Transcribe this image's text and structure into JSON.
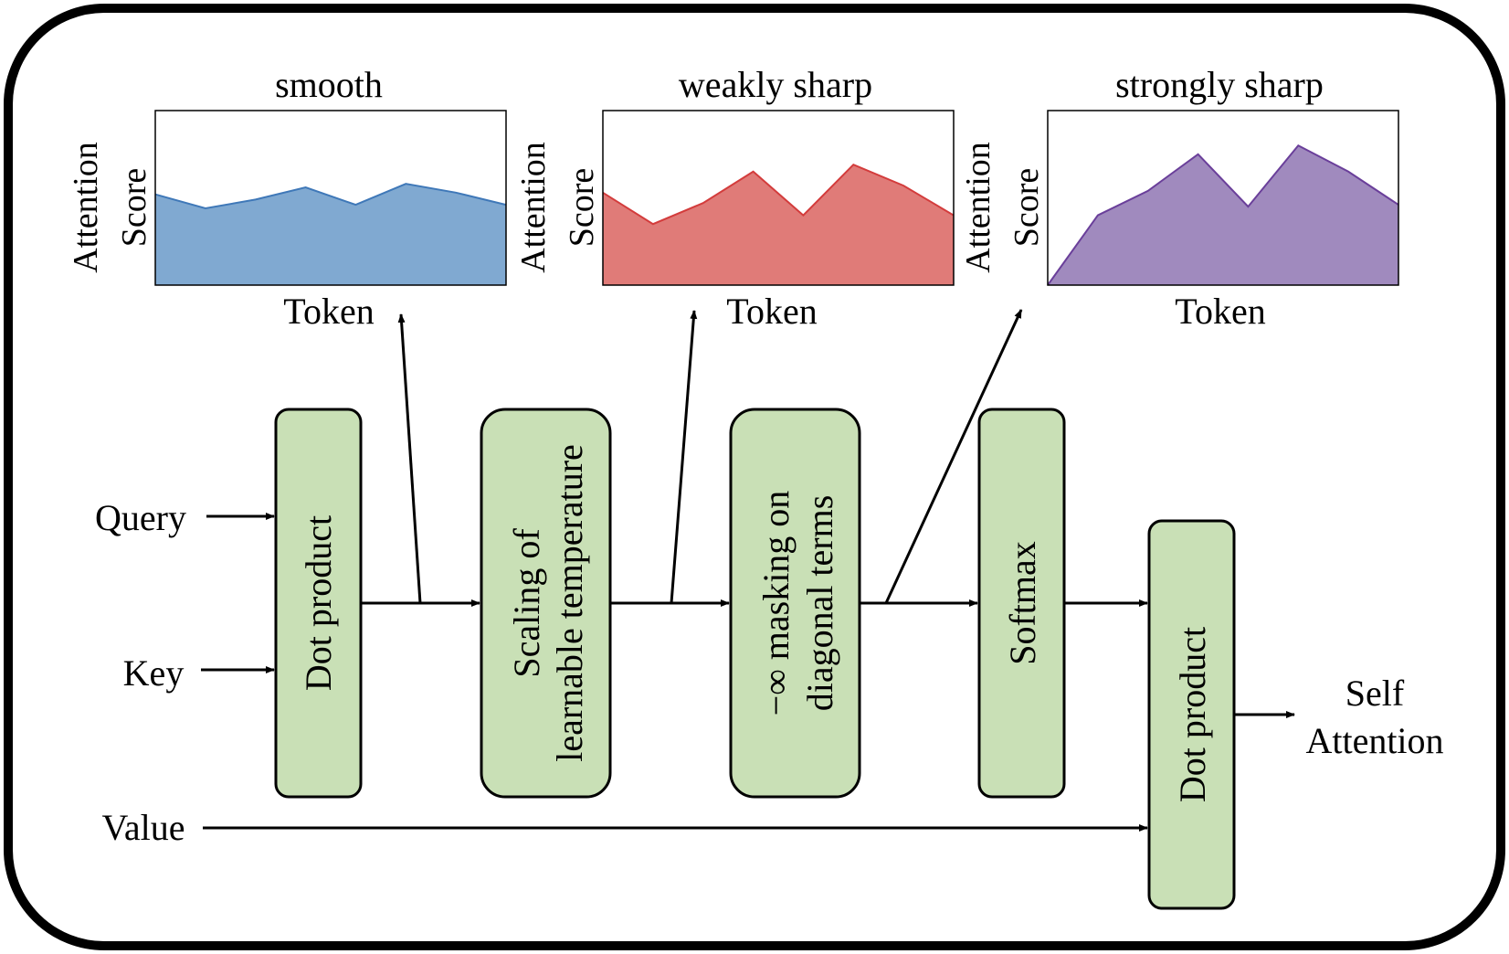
{
  "charts": [
    {
      "title": "smooth",
      "xlabel": "Token",
      "ylabel_line1": "Attention",
      "ylabel_line2": "Score",
      "fill": "#80a9d1",
      "stroke": "#3f78b8",
      "min_score": 0,
      "max_score": 1,
      "scores": [
        0.52,
        0.44,
        0.49,
        0.56,
        0.46,
        0.58,
        0.53,
        0.46
      ]
    },
    {
      "title": "weakly sharp",
      "xlabel": "Token",
      "ylabel_line1": "Attention",
      "ylabel_line2": "Score",
      "fill": "#e07b78",
      "stroke": "#d33c3c",
      "min_score": 0,
      "max_score": 1,
      "scores": [
        0.53,
        0.35,
        0.47,
        0.65,
        0.4,
        0.69,
        0.57,
        0.4
      ]
    },
    {
      "title": "strongly sharp",
      "xlabel": "Token",
      "ylabel_line1": "Attention",
      "ylabel_line2": "Score",
      "fill": "#a08abe",
      "stroke": "#6a3f9a",
      "min_score": 0,
      "max_score": 1,
      "scores": [
        0.0,
        0.4,
        0.54,
        0.75,
        0.45,
        0.8,
        0.65,
        0.46
      ]
    }
  ],
  "inputs": {
    "query": "Query",
    "key": "Key",
    "value": "Value"
  },
  "blocks": {
    "dot_product_1": "Dot product",
    "scaling_line1": "Scaling of",
    "scaling_line2": "learnable temperature",
    "masking_line1": "−∞ masking on",
    "masking_line2": "diagonal terms",
    "softmax": "Softmax",
    "dot_product_2": "Dot product"
  },
  "output": {
    "line1": "Self",
    "line2": "Attention"
  },
  "colors": {
    "block_fill": "#c9e0b6",
    "border": "#000000"
  }
}
